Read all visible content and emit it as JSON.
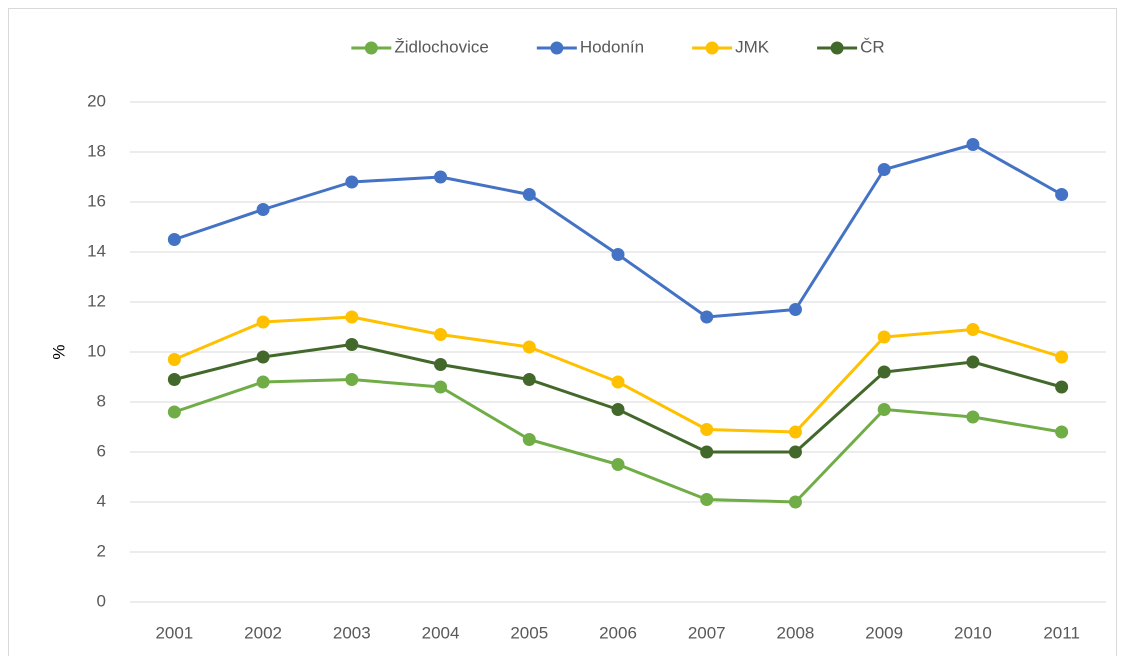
{
  "chart_data": {
    "type": "line",
    "y_label": "%",
    "categories": [
      "2001",
      "2002",
      "2003",
      "2004",
      "2005",
      "2006",
      "2007",
      "2008",
      "2009",
      "2010",
      "2011"
    ],
    "series": [
      {
        "name": "Židlochovice",
        "color": "#70ad47",
        "values": [
          7.6,
          8.8,
          8.9,
          8.6,
          6.5,
          5.5,
          4.1,
          4.0,
          7.7,
          7.4,
          6.8
        ]
      },
      {
        "name": "Hodonín",
        "color": "#4472c4",
        "values": [
          14.5,
          15.7,
          16.8,
          17.0,
          16.3,
          13.9,
          11.4,
          11.7,
          17.3,
          18.3,
          16.3
        ]
      },
      {
        "name": "JMK",
        "color": "#ffc000",
        "values": [
          9.7,
          11.2,
          11.4,
          10.7,
          10.2,
          8.8,
          6.9,
          6.8,
          10.6,
          10.9,
          9.8
        ]
      },
      {
        "name": "ČR",
        "color": "#43682b",
        "values": [
          8.9,
          9.8,
          10.3,
          9.5,
          8.9,
          7.7,
          6.0,
          6.0,
          9.2,
          9.6,
          8.6
        ]
      }
    ],
    "ylim": [
      0,
      20
    ],
    "yticks": [
      0,
      2,
      4,
      6,
      8,
      10,
      12,
      14,
      16,
      18,
      20
    ],
    "grid": true,
    "legend": "top"
  }
}
